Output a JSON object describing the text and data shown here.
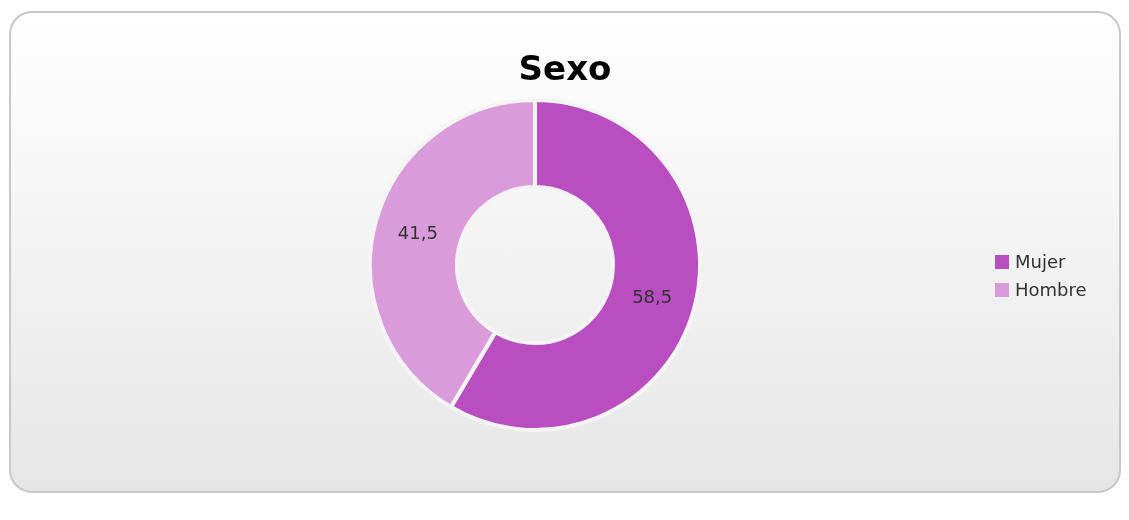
{
  "chart_data": {
    "type": "donut",
    "title": "Sexo",
    "categories": [
      "Mujer",
      "Hombre"
    ],
    "values": [
      58.5,
      41.5
    ],
    "colors": [
      "#b94ec1",
      "#d99bd9"
    ],
    "value_labels": [
      "58,5",
      "41,5"
    ],
    "legend": "right"
  }
}
